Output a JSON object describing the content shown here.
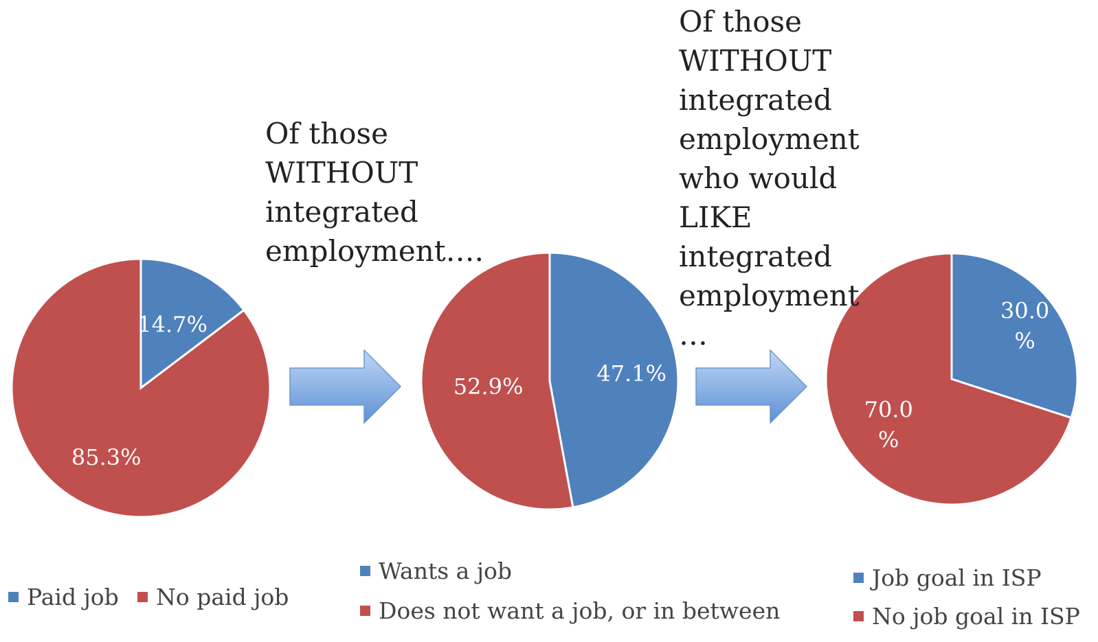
{
  "colors": {
    "blue": "#4F81BD",
    "red": "#C0504D"
  },
  "captions": {
    "caption1": [
      "Of those",
      "WITHOUT",
      "integrated",
      "employment…."
    ],
    "caption2": [
      "Of those",
      "WITHOUT",
      "integrated",
      "employment",
      "who would",
      "LIKE",
      "integrated",
      "employment",
      "…"
    ]
  },
  "chart_data": [
    {
      "type": "pie",
      "title": "",
      "slices": [
        {
          "label": "Paid job",
          "value": 14.7,
          "display": [
            "14.7%"
          ],
          "color": "#4F81BD"
        },
        {
          "label": "No paid job",
          "value": 85.3,
          "display": [
            "85.3%"
          ],
          "color": "#C0504D"
        }
      ],
      "legend": [
        "Paid job",
        "No paid job"
      ],
      "legend_layout": "bottom, horizontal"
    },
    {
      "type": "pie",
      "title": "",
      "slices": [
        {
          "label": "Wants a job",
          "value": 47.1,
          "display": [
            "47.1%"
          ],
          "color": "#4F81BD"
        },
        {
          "label": "Does not want a job, or in between",
          "value": 52.9,
          "display": [
            "52.9%"
          ],
          "color": "#C0504D"
        }
      ],
      "legend": [
        "Wants a job",
        "Does not want a job, or in between"
      ],
      "legend_layout": "bottom, vertical"
    },
    {
      "type": "pie",
      "title": "",
      "slices": [
        {
          "label": "Job goal in ISP",
          "value": 30.0,
          "display": [
            "30.0",
            "%"
          ],
          "color": "#4F81BD"
        },
        {
          "label": "No job goal in ISP",
          "value": 70.0,
          "display": [
            "70.0",
            "%"
          ],
          "color": "#C0504D"
        }
      ],
      "legend": [
        "Job goal in ISP",
        "No job goal in ISP"
      ],
      "legend_layout": "bottom, vertical"
    }
  ]
}
